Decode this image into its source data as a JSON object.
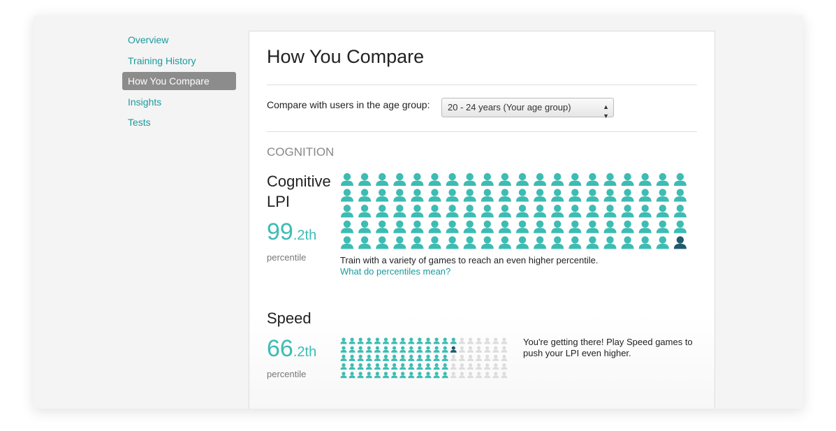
{
  "sidebar": {
    "items": [
      "Overview",
      "Training History",
      "How You Compare",
      "Insights",
      "Tests"
    ],
    "active": 2
  },
  "main": {
    "title": "How You Compare",
    "compare_label": "Compare with users in the age group:",
    "age_group_select": "20 - 24 years (Your age group)",
    "section_heading": "COGNITION",
    "metrics": [
      {
        "name_lines": [
          "Cognitive",
          "LPI"
        ],
        "percentile": "99",
        "suffix": ".2th",
        "percentile_label": "percentile",
        "message": "Train with a variety of games to reach an even higher percentile.",
        "link": "What do percentiles mean?"
      },
      {
        "name_lines": [
          "Speed"
        ],
        "percentile": "66",
        "suffix": ".2th",
        "percentile_label": "percentile",
        "message": "You're getting there! Play Speed games to push your LPI even higher."
      }
    ]
  }
}
